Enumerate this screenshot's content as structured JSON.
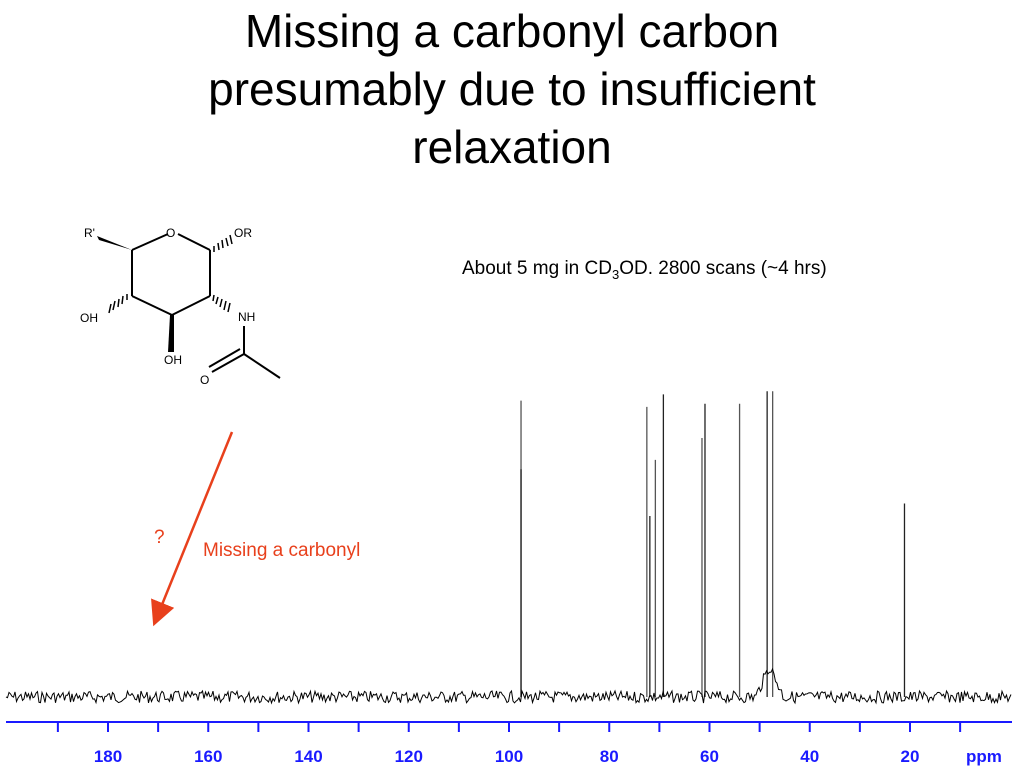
{
  "slide": {
    "title_lines": [
      "Missing a carbonyl carbon",
      "presumably due to insufficient",
      "relaxation"
    ],
    "sample_pre": "About 5 mg in CD",
    "sample_sub": "3",
    "sample_post": "OD. 2800 scans (~4 hrs)",
    "question_mark": "?",
    "missing_label": "Missing a carbonyl",
    "accent_color": "#e8401c",
    "axis_color": "#1a1aff"
  },
  "molecule": {
    "labels": {
      "r_prime": "R'",
      "ring_o": "O",
      "or": "OR",
      "oh_left": "OH",
      "oh_bottom": "OH",
      "nh": "NH",
      "carbonyl_o": "O"
    }
  },
  "chart_data": {
    "type": "line",
    "title": "",
    "xlabel": "ppm",
    "ylabel": "",
    "xlim": [
      200,
      0
    ],
    "ylim": [
      -0.05,
      1.0
    ],
    "xticks": [
      180,
      160,
      140,
      120,
      100,
      80,
      60,
      40,
      20
    ],
    "peaks": [
      {
        "ppm": 97.6,
        "height": 0.95
      },
      {
        "ppm": 97.6,
        "height": 0.73
      },
      {
        "ppm": 72.5,
        "height": 0.93
      },
      {
        "ppm": 71.9,
        "height": 0.58
      },
      {
        "ppm": 70.8,
        "height": 0.76
      },
      {
        "ppm": 69.2,
        "height": 0.97
      },
      {
        "ppm": 61.5,
        "height": 0.83
      },
      {
        "ppm": 60.9,
        "height": 0.94
      },
      {
        "ppm": 54.0,
        "height": 0.94
      },
      {
        "ppm": 48.5,
        "height": 0.98
      },
      {
        "ppm": 47.4,
        "height": 0.98
      },
      {
        "ppm": 21.1,
        "height": 0.62
      }
    ],
    "solvent_multiplet": {
      "ppm": 48.0,
      "label": ""
    },
    "missing_carbonyl_ppm": 172
  }
}
